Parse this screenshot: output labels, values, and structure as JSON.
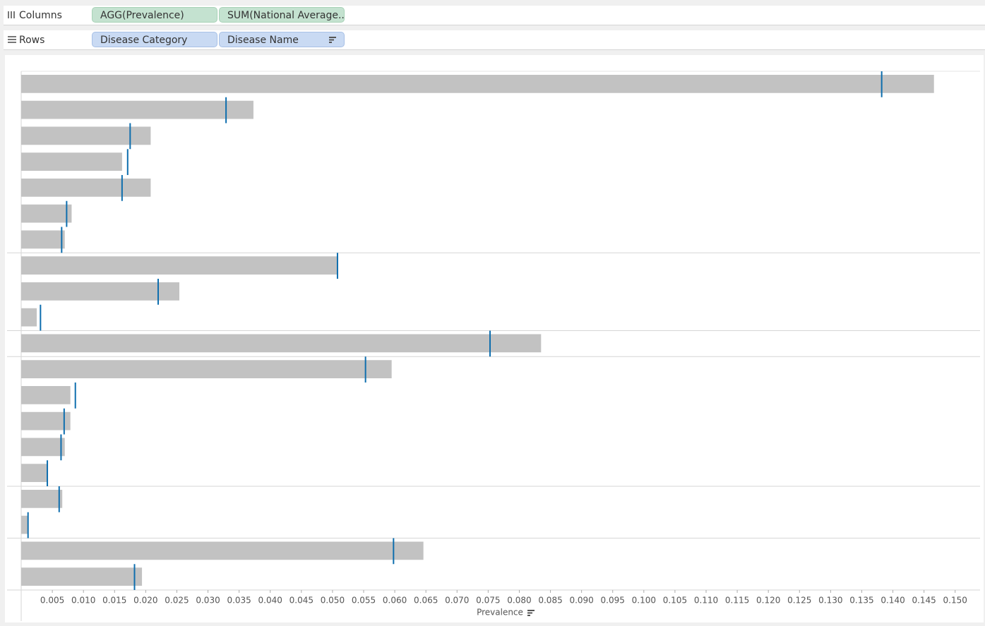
{
  "shelves": {
    "columns": {
      "label": "Columns",
      "pills": [
        "AGG(Prevalence)",
        "SUM(National Average.."
      ]
    },
    "rows": {
      "label": "Rows",
      "pills": [
        "Disease Category",
        "Disease Name"
      ]
    }
  },
  "chart_data": {
    "type": "bullet",
    "categories": [
      null,
      null,
      null,
      null,
      null,
      null,
      null,
      null,
      null,
      null,
      null,
      null,
      null,
      null,
      null,
      null,
      null,
      null,
      null,
      null
    ],
    "series": [
      {
        "color": "#c2c2c2",
        "values": [
          0.1466,
          0.0373,
          0.0208,
          0.0162,
          0.0208,
          0.0081,
          0.007,
          0.0508,
          0.0254,
          0.0025,
          0.0835,
          0.0595,
          0.0079,
          0.0079,
          0.007,
          0.0043,
          0.0066,
          0.0011,
          0.0646,
          0.0194
        ]
      },
      {
        "color": "#0e6eae",
        "values": [
          0.1382,
          0.0329,
          0.0175,
          0.0171,
          0.0162,
          0.0073,
          0.0065,
          0.0508,
          0.022,
          0.0031,
          0.0753,
          0.0553,
          0.0087,
          0.0069,
          0.0064,
          0.0042,
          0.0061,
          0.0011,
          0.0598,
          0.0182
        ]
      }
    ],
    "x_label": "Prevalence",
    "xlim": [
      0,
      0.154
    ],
    "xticks": [
      0.005,
      {
        "value": 0.01,
        "label": "0.010"
      },
      0.015,
      {
        "value": 0.02,
        "label": "0.020"
      },
      0.025,
      {
        "value": 0.03,
        "label": "0.030"
      },
      0.035,
      {
        "value": 0.04,
        "label": "0.040"
      },
      0.045,
      {
        "value": 0.05,
        "label": "0.050"
      },
      0.055,
      {
        "value": 0.06,
        "label": "0.060"
      },
      0.065,
      {
        "value": 0.07,
        "label": "0.070"
      },
      0.075,
      {
        "value": 0.08,
        "label": "0.080"
      },
      0.085,
      {
        "value": 0.09,
        "label": "0.090"
      },
      0.095,
      {
        "value": 0.1,
        "label": "0.100"
      },
      0.105,
      {
        "value": 0.11,
        "label": "0.110"
      },
      0.115,
      {
        "value": 0.12,
        "label": "0.120"
      },
      0.125,
      {
        "value": 0.13,
        "label": "0.130"
      },
      0.135,
      {
        "value": 0.14,
        "label": "0.140"
      },
      0.145,
      {
        "value": 0.15,
        "label": "0.150"
      }
    ]
  }
}
